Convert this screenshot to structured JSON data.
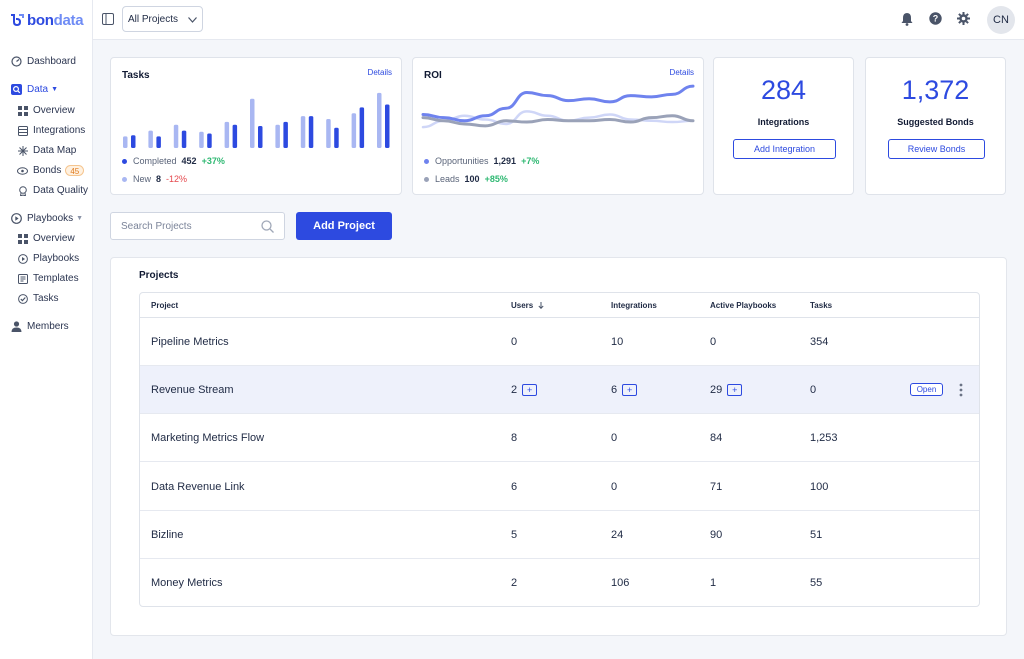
{
  "brand": {
    "name_a": "bon",
    "name_b": "data",
    "accent": "#2d4ae0"
  },
  "sidebar": {
    "dashboard": "Dashboard",
    "data": "Data",
    "data_items": [
      {
        "label": "Overview",
        "icon": "grid-icon"
      },
      {
        "label": "Integrations",
        "icon": "database-icon"
      },
      {
        "label": "Data Map",
        "icon": "network-icon"
      },
      {
        "label": "Bonds",
        "icon": "link-icon",
        "badge": "45"
      },
      {
        "label": "Data Quality",
        "icon": "award-icon"
      }
    ],
    "playbooks": "Playbooks",
    "playbook_items": [
      {
        "label": "Overview",
        "icon": "grid-icon"
      },
      {
        "label": "Playbooks",
        "icon": "play-icon"
      },
      {
        "label": "Templates",
        "icon": "template-icon"
      },
      {
        "label": "Tasks",
        "icon": "check-circle-icon"
      }
    ],
    "members": "Members"
  },
  "header": {
    "project_select": "All Projects",
    "avatar": "CN"
  },
  "cards": {
    "tasks": {
      "title": "Tasks",
      "link": "Details",
      "completed": {
        "label": "Completed",
        "value": "452",
        "delta": "+37%"
      },
      "new": {
        "label": "New",
        "value": "8",
        "delta": "-12%"
      }
    },
    "roi": {
      "title": "ROI",
      "link": "Details",
      "opportunities": {
        "label": "Opportunities",
        "value": "1,291",
        "delta": "+7%"
      },
      "leads": {
        "label": "Leads",
        "value": "100",
        "delta": "+85%"
      }
    },
    "integrations": {
      "value": "284",
      "label": "Integrations",
      "button": "Add Integration"
    },
    "bonds": {
      "value": "1,372",
      "label": "Suggested Bonds",
      "button": "Review Bonds"
    }
  },
  "search": {
    "placeholder": "Search Projects"
  },
  "add_project": "Add Project",
  "projects": {
    "title": "Projects",
    "columns": {
      "project": "Project",
      "users": "Users",
      "integrations": "Integrations",
      "playbooks": "Active Playbooks",
      "tasks": "Tasks"
    },
    "open_label": "Open",
    "rows": [
      {
        "name": "Pipeline Metrics",
        "users": "0",
        "integrations": "10",
        "playbooks": "0",
        "tasks": "354"
      },
      {
        "name": "Revenue Stream",
        "users": "2",
        "integrations": "6",
        "playbooks": "29",
        "tasks": "0"
      },
      {
        "name": "Marketing Metrics Flow",
        "users": "8",
        "integrations": "0",
        "playbooks": "84",
        "tasks": "1,253"
      },
      {
        "name": "Data Revenue Link",
        "users": "6",
        "integrations": "0",
        "playbooks": "71",
        "tasks": "100"
      },
      {
        "name": "Bizline",
        "users": "5",
        "integrations": "24",
        "playbooks": "90",
        "tasks": "51"
      },
      {
        "name": "Money Metrics",
        "users": "2",
        "integrations": "106",
        "playbooks": "1",
        "tasks": "55"
      }
    ]
  },
  "chart_data": [
    {
      "type": "bar",
      "categories": [
        "1",
        "2",
        "3",
        "4",
        "5",
        "6",
        "7",
        "8",
        "9",
        "10",
        "11"
      ],
      "series": [
        {
          "name": "Completed",
          "values": [
            22,
            20,
            30,
            25,
            40,
            38,
            45,
            55,
            35,
            70,
            75
          ],
          "color": "#2d4ae0"
        },
        {
          "name": "New",
          "values": [
            20,
            30,
            40,
            28,
            45,
            85,
            40,
            55,
            50,
            60,
            95
          ],
          "color": "#a9b7f2"
        }
      ]
    },
    {
      "type": "line",
      "x": [
        0,
        1,
        2,
        3,
        4,
        5,
        6,
        7,
        8,
        9,
        10,
        11,
        12,
        13
      ],
      "series": [
        {
          "name": "Opportunities",
          "values": [
            50,
            45,
            40,
            48,
            60,
            85,
            80,
            72,
            75,
            70,
            80,
            78,
            82,
            95
          ],
          "color": "#6f83ee"
        },
        {
          "name": "Leads",
          "values": [
            45,
            40,
            35,
            32,
            40,
            38,
            42,
            40,
            40,
            42,
            38,
            45,
            48,
            40
          ],
          "color": "#9aa2b8"
        },
        {
          "name": "",
          "values": [
            30,
            40,
            48,
            42,
            35,
            55,
            48,
            40,
            45,
            50,
            42,
            40,
            38,
            40
          ],
          "color": "#cfd6f7"
        }
      ]
    }
  ]
}
